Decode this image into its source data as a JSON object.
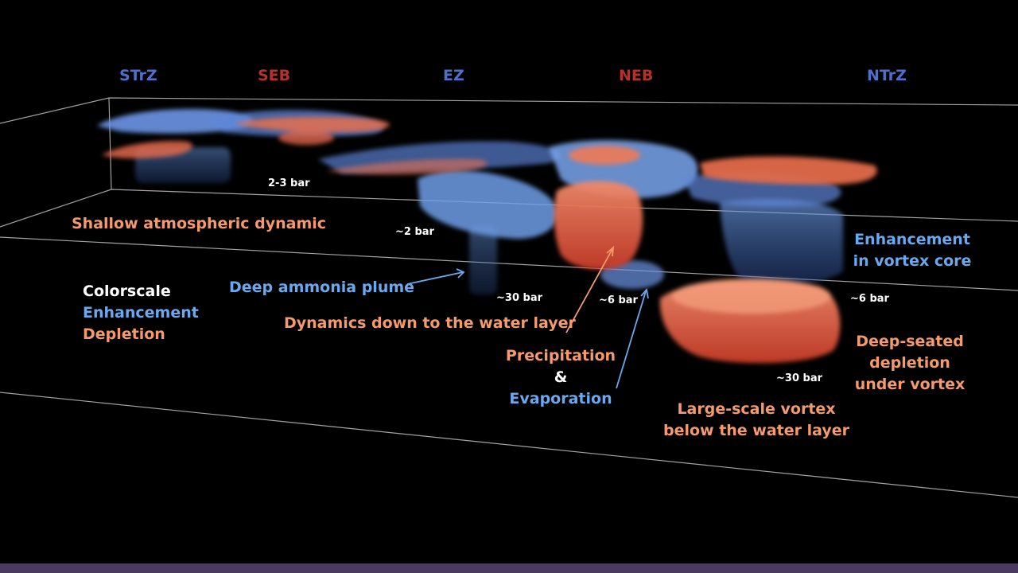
{
  "zones": [
    {
      "label": "STrZ",
      "color": "#4f6fcf"
    },
    {
      "label": "SEB",
      "color": "#b8302a"
    },
    {
      "label": "EZ",
      "color": "#4f6fcf"
    },
    {
      "label": "NEB",
      "color": "#b8302a"
    },
    {
      "label": "NTrZ",
      "color": "#4f6fcf"
    }
  ],
  "annotations": {
    "shallow": "Shallow atmospheric dynamic",
    "plume": "Deep ammonia plume",
    "water_dynamics": "Dynamics down to the water layer",
    "precip": "Precipitation",
    "amp": "&",
    "evap": "Evaporation",
    "vortex_core_1": "Enhancement",
    "vortex_core_2": "in vortex core",
    "deep_seated_1": "Deep-seated",
    "deep_seated_2": "depletion",
    "deep_seated_3": "under vortex",
    "large_vortex_1": "Large-scale vortex",
    "large_vortex_2": "below the water  layer"
  },
  "legend": {
    "title": "Colorscale",
    "enhancement": "Enhancement",
    "depletion": "Depletion"
  },
  "pressure_labels": {
    "p1": "2-3 bar",
    "p2": "~2 bar",
    "p3": "~30 bar",
    "p4": "~6 bar",
    "p5": "~6 bar",
    "p6": "~30 bar"
  },
  "colors": {
    "enhancement": "#6aa9ee",
    "depletion": "#f59a6d",
    "background": "#000000",
    "bottom_bar": "#4a3a5f"
  }
}
